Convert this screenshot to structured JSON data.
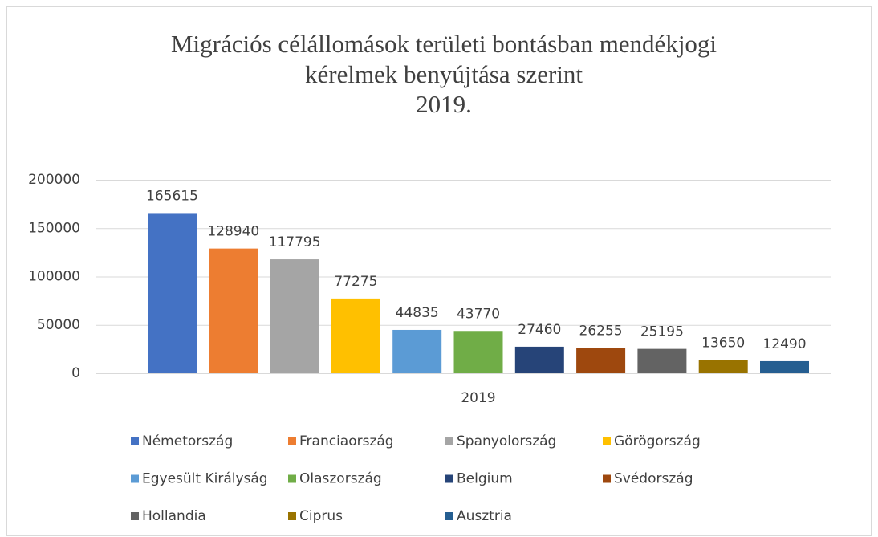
{
  "chart_data": {
    "type": "bar",
    "title": [
      "Migrációs célállomások területi bontásban mendékjogi",
      "kérelmek benyújtása szerint",
      "2019."
    ],
    "categories": [
      "2019"
    ],
    "series": [
      {
        "name": "Németország",
        "color": "#4472c4",
        "values": [
          165615
        ]
      },
      {
        "name": "Franciaország",
        "color": "#ed7d31",
        "values": [
          128940
        ]
      },
      {
        "name": "Spanyolország",
        "color": "#a5a5a5",
        "values": [
          117795
        ]
      },
      {
        "name": "Görögország",
        "color": "#ffc000",
        "values": [
          77275
        ]
      },
      {
        "name": "Egyesült Királyság",
        "color": "#5b9bd5",
        "values": [
          44835
        ]
      },
      {
        "name": "Olaszország",
        "color": "#70ad47",
        "values": [
          43770
        ]
      },
      {
        "name": "Belgium",
        "color": "#264478",
        "values": [
          27460
        ]
      },
      {
        "name": "Svédország",
        "color": "#9e480e",
        "values": [
          26255
        ]
      },
      {
        "name": "Hollandia",
        "color": "#636363",
        "values": [
          25195
        ]
      },
      {
        "name": "Ciprus",
        "color": "#997300",
        "values": [
          13650
        ]
      },
      {
        "name": "Ausztria",
        "color": "#255e91",
        "values": [
          12490
        ]
      }
    ],
    "ylim": [
      0,
      200000
    ],
    "yticks": [
      0,
      50000,
      100000,
      150000,
      200000
    ],
    "grid": true,
    "legend": "bottom"
  }
}
